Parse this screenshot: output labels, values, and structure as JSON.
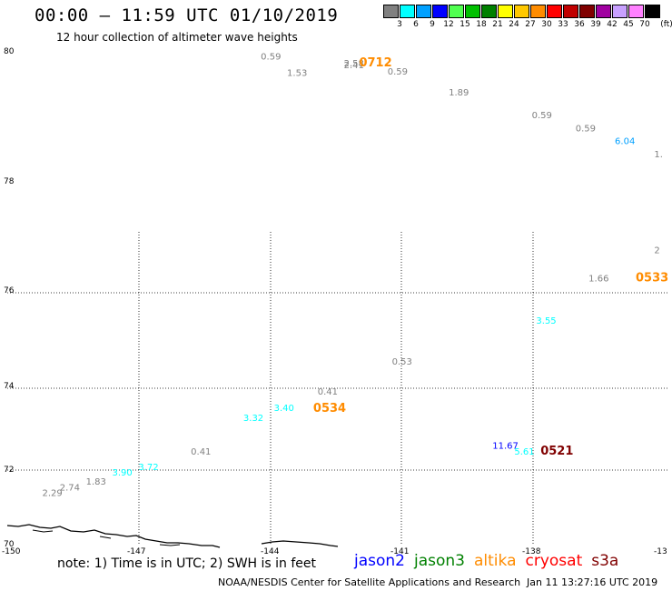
{
  "title": "00:00 – 11:59 UTC 01/10/2019",
  "subtitle": "12 hour collection of altimeter wave heights",
  "legend": {
    "unit": "(ft)",
    "items": [
      {
        "label": "3",
        "color": "#808080"
      },
      {
        "label": "6",
        "color": "#00ffff"
      },
      {
        "label": "9",
        "color": "#00a0ff"
      },
      {
        "label": "12",
        "color": "#0000ff"
      },
      {
        "label": "15",
        "color": "#50ff50"
      },
      {
        "label": "18",
        "color": "#00c000"
      },
      {
        "label": "21",
        "color": "#008000"
      },
      {
        "label": "24",
        "color": "#ffff00"
      },
      {
        "label": "27",
        "color": "#ffc800"
      },
      {
        "label": "30",
        "color": "#ff8c00"
      },
      {
        "label": "33",
        "color": "#ff0000"
      },
      {
        "label": "36",
        "color": "#c00000"
      },
      {
        "label": "39",
        "color": "#800000"
      },
      {
        "label": "42",
        "color": "#a000a0"
      },
      {
        "label": "45",
        "color": "#c8a0ff"
      },
      {
        "label": "70",
        "color": "#ff80ff"
      },
      {
        "label": "",
        "color": "#000000"
      }
    ]
  },
  "axes": {
    "lat_labels": [
      "80",
      "78",
      "76",
      "74",
      "72",
      "70"
    ],
    "lon_labels": [
      "-150",
      "-147",
      "-144",
      "-141",
      "-138",
      "-13"
    ]
  },
  "wave_heights": [
    {
      "text": "0.59",
      "lon": -144.2,
      "lat": 79.85,
      "color": "#808080"
    },
    {
      "text": "1.53",
      "lon": -143.6,
      "lat": 79.6,
      "color": "#808080"
    },
    {
      "text": "2.58",
      "lon": -142.3,
      "lat": 79.75,
      "color": "#808080"
    },
    {
      "text": "2.41",
      "lon": -142.3,
      "lat": 79.72,
      "color": "#808080"
    },
    {
      "text": "0.59",
      "lon": -141.3,
      "lat": 79.62,
      "color": "#808080"
    },
    {
      "text": "1.89",
      "lon": -139.9,
      "lat": 79.3,
      "color": "#808080"
    },
    {
      "text": "0.59",
      "lon": -138.0,
      "lat": 78.95,
      "color": "#808080"
    },
    {
      "text": "0.59",
      "lon": -137.0,
      "lat": 78.75,
      "color": "#808080"
    },
    {
      "text": "6.04",
      "lon": -136.1,
      "lat": 78.55,
      "color": "#00a0ff"
    },
    {
      "text": "1.",
      "lon": -135.2,
      "lat": 78.35,
      "color": "#808080"
    },
    {
      "text": "2",
      "lon": -135.2,
      "lat": 76.7,
      "color": "#808080"
    },
    {
      "text": "1.66",
      "lon": -136.7,
      "lat": 76.2,
      "color": "#808080"
    },
    {
      "text": "3.55",
      "lon": -137.9,
      "lat": 75.35,
      "color": "#00ffff"
    },
    {
      "text": "0.53",
      "lon": -141.2,
      "lat": 74.5,
      "color": "#808080"
    },
    {
      "text": "0.41",
      "lon": -142.9,
      "lat": 73.85,
      "color": "#808080"
    },
    {
      "text": "3.40",
      "lon": -143.9,
      "lat": 73.45,
      "color": "#00ffff"
    },
    {
      "text": "3.32",
      "lon": -144.6,
      "lat": 73.2,
      "color": "#00ffff"
    },
    {
      "text": "11.67",
      "lon": -138.9,
      "lat": 72.52,
      "color": "#0000ff"
    },
    {
      "text": "5.61",
      "lon": -138.4,
      "lat": 72.38,
      "color": "#00ffff"
    },
    {
      "text": "0.41",
      "lon": -145.8,
      "lat": 72.38,
      "color": "#808080"
    },
    {
      "text": "3.72",
      "lon": -147.0,
      "lat": 72.0,
      "color": "#00ffff"
    },
    {
      "text": "3.90",
      "lon": -147.6,
      "lat": 71.85,
      "color": "#00ffff"
    },
    {
      "text": "1.83",
      "lon": -148.2,
      "lat": 71.6,
      "color": "#808080"
    },
    {
      "text": "2.74",
      "lon": -148.8,
      "lat": 71.45,
      "color": "#808080"
    },
    {
      "text": "2.29",
      "lon": -149.2,
      "lat": 71.3,
      "color": "#808080"
    }
  ],
  "pass_times": [
    {
      "text": "0712",
      "lon": -141.95,
      "lat": 79.75,
      "color": "#ff8c00"
    },
    {
      "text": "0533",
      "lon": -135.6,
      "lat": 76.2,
      "color": "#ff8c00"
    },
    {
      "text": "0534",
      "lon": -143.0,
      "lat": 73.42,
      "color": "#ff8c00"
    },
    {
      "text": "0521",
      "lon": -137.8,
      "lat": 72.38,
      "color": "#800000"
    }
  ],
  "note": "note: 1) Time is in UTC; 2) SWH is in feet",
  "satellites": [
    {
      "name": "jason2",
      "color": "#0000ff"
    },
    {
      "name": "jason3",
      "color": "#008000"
    },
    {
      "name": "altika",
      "color": "#ff8c00"
    },
    {
      "name": "cryosat",
      "color": "#ff0000"
    },
    {
      "name": "s3a",
      "color": "#800000"
    }
  ],
  "credit": "NOAA/NESDIS Center for Satellite Applications and Research",
  "timestamp": "Jan 11 13:27:16 UTC 2019"
}
